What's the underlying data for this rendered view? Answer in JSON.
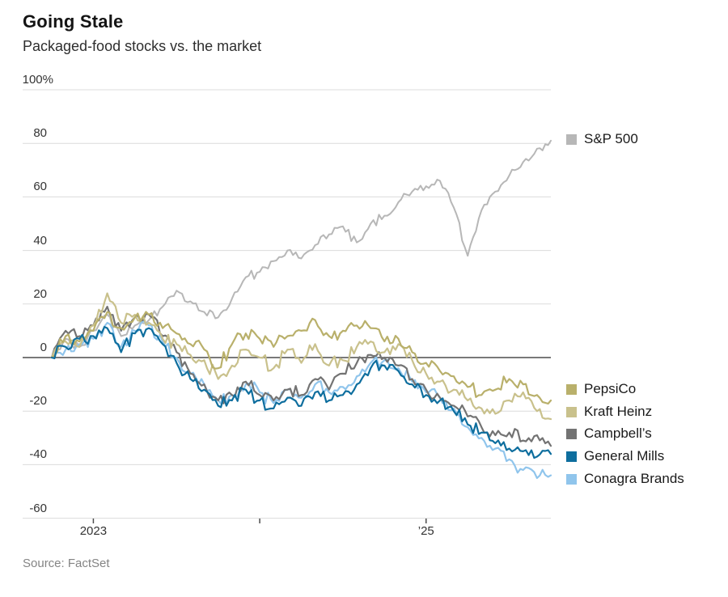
{
  "header": {
    "title": "Going Stale",
    "subtitle": "Packaged-food stocks vs. the market"
  },
  "source": "Source: FactSet",
  "chart_data": {
    "type": "line",
    "title": "Going Stale",
    "subtitle": "Packaged-food stocks vs. the market",
    "unit": "percent change",
    "grid": "horizontal",
    "ylim": [
      -60,
      100
    ],
    "months": [
      "2022-10",
      "2022-11",
      "2022-12",
      "2023-01",
      "2023-02",
      "2023-03",
      "2023-04",
      "2023-05",
      "2023-06",
      "2023-07",
      "2023-08",
      "2023-09",
      "2023-10",
      "2023-11",
      "2023-12",
      "2024-01",
      "2024-02",
      "2024-03",
      "2024-04",
      "2024-05",
      "2024-06",
      "2024-07",
      "2024-08",
      "2024-09",
      "2024-10",
      "2024-11",
      "2024-12",
      "2025-01",
      "2025-02",
      "2025-03",
      "2025-04",
      "2025-05",
      "2025-06",
      "2025-07",
      "2025-08",
      "2025-09",
      "2025-10"
    ],
    "y_axis": {
      "ticks": [
        {
          "value": 100,
          "label": "100%"
        },
        {
          "value": 80,
          "label": "80"
        },
        {
          "value": 60,
          "label": "60"
        },
        {
          "value": 40,
          "label": "40"
        },
        {
          "value": 20,
          "label": "20"
        },
        {
          "value": 0,
          "label": "0"
        },
        {
          "value": -20,
          "label": "-20"
        },
        {
          "value": -40,
          "label": "-40"
        },
        {
          "value": -60,
          "label": "-60"
        }
      ],
      "zero_baseline": true
    },
    "x_axis": {
      "ticks": [
        {
          "month_index": 3,
          "label": "2023"
        },
        {
          "month_index": 15,
          "label": ""
        },
        {
          "month_index": 27,
          "label": "’25"
        }
      ]
    },
    "legend": {
      "top_right_entry": "S&P 500",
      "bottom_right_entries": [
        "PepsiCo",
        "Kraft Heinz",
        "Campbell’s",
        "General Mills",
        "Conagra Brands"
      ]
    },
    "series": [
      {
        "name": "S&P 500",
        "color": "#b7b7b7",
        "values": [
          0,
          7,
          4,
          10,
          16,
          8,
          12,
          14,
          19,
          25,
          21,
          17,
          15,
          22,
          30,
          32,
          36,
          40,
          37,
          42,
          46,
          49,
          43,
          50,
          53,
          58,
          62,
          64,
          66,
          56,
          38,
          55,
          62,
          68,
          73,
          78,
          81
        ]
      },
      {
        "name": "PepsiCo",
        "color": "#b9b06b",
        "values": [
          0,
          8,
          6,
          10,
          17,
          11,
          15,
          16,
          11,
          9,
          5,
          3,
          -4,
          5,
          9,
          7,
          4,
          8,
          10,
          14,
          8,
          10,
          12,
          11,
          6,
          7,
          2,
          -2,
          -5,
          -7,
          -11,
          -14,
          -12,
          -8,
          -10,
          -14,
          -16
        ]
      },
      {
        "name": "Kraft Heinz",
        "color": "#c9c18c",
        "values": [
          0,
          6,
          4,
          12,
          24,
          13,
          16,
          13,
          7,
          5,
          1,
          -1,
          -8,
          -3,
          3,
          0,
          -4,
          3,
          -2,
          5,
          -3,
          -1,
          4,
          6,
          2,
          5,
          -1,
          -6,
          -9,
          -12,
          -16,
          -19,
          -21,
          -16,
          -13,
          -20,
          -23
        ]
      },
      {
        "name": "Campbell’s",
        "color": "#737373",
        "values": [
          0,
          10,
          8,
          12,
          19,
          10,
          15,
          16,
          8,
          2,
          -6,
          -10,
          -16,
          -14,
          -9,
          -14,
          -16,
          -12,
          -14,
          -8,
          -12,
          -6,
          -2,
          1,
          0,
          -3,
          -8,
          -12,
          -15,
          -18,
          -22,
          -26,
          -29,
          -28,
          -31,
          -29,
          -33
        ]
      },
      {
        "name": "General Mills",
        "color": "#0e6e9e",
        "values": [
          0,
          4,
          7,
          8,
          11,
          2,
          9,
          11,
          5,
          -2,
          -8,
          -12,
          -18,
          -16,
          -12,
          -16,
          -19,
          -15,
          -18,
          -13,
          -16,
          -14,
          -10,
          -4,
          -3,
          -5,
          -10,
          -14,
          -16,
          -20,
          -25,
          -28,
          -32,
          -34,
          -35,
          -37,
          -36
        ]
      },
      {
        "name": "Conagra Brands",
        "color": "#90c5ec",
        "values": [
          0,
          3,
          5,
          7,
          13,
          4,
          10,
          12,
          6,
          0,
          -6,
          -10,
          -16,
          -14,
          -10,
          -13,
          -17,
          -12,
          -15,
          -10,
          -13,
          -11,
          -7,
          -2,
          -1,
          -4,
          -9,
          -13,
          -15,
          -19,
          -26,
          -30,
          -34,
          -38,
          -42,
          -45,
          -44
        ]
      }
    ]
  }
}
